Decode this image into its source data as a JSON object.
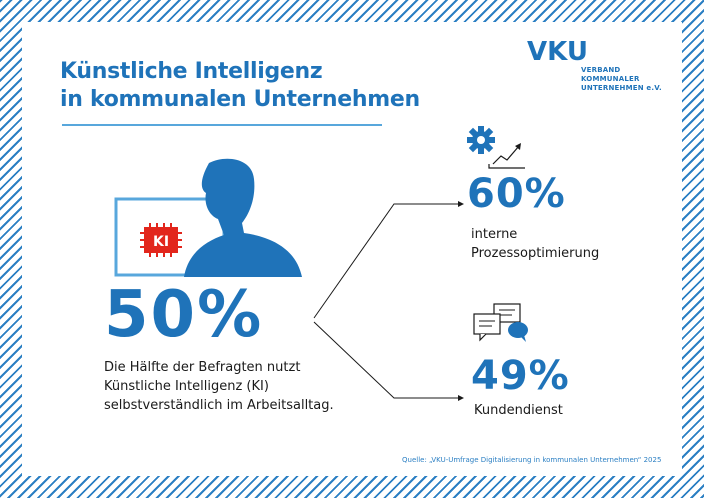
{
  "title": {
    "line1": "Künstliche Intelligenz",
    "line2": "in kommunalen Unternehmen"
  },
  "logo": {
    "word": "VKU",
    "sub_line1": "VERBAND KOMMUNALER",
    "sub_line2": "UNTERNEHMEN e.V."
  },
  "main_stat": {
    "badge": "KI",
    "percent": "50%",
    "description": [
      "Die Hälfte der Befragten nutzt",
      "Künstliche Intelligenz (KI)",
      "selbstverständlich im Arbeitsalltag."
    ]
  },
  "stats": [
    {
      "percent": "60%",
      "label": [
        "interne",
        "Prozessoptimierung"
      ],
      "icon": "gear-chart-icon"
    },
    {
      "percent": "49%",
      "label": [
        "Kundendienst"
      ],
      "icon": "chat-bubbles-icon"
    }
  ],
  "source": "Quelle: „VKU-Umfrage Digitalisierung in kommunalen Unternehmen“ 2025",
  "colors": {
    "accent": "#1f73b9",
    "light": "#58a7dc",
    "badge": "#e2261c"
  }
}
